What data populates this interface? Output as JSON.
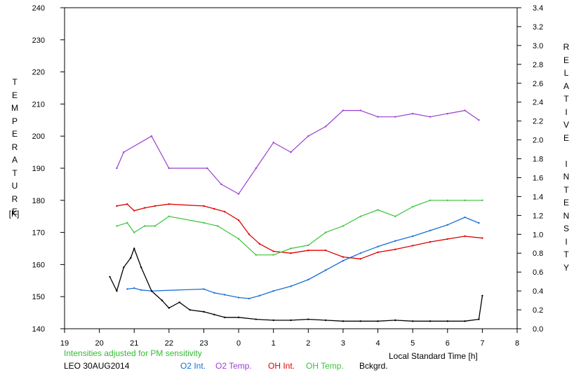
{
  "chart_data": {
    "type": "line",
    "title": "",
    "xlabel": "Local Standard Time [h]",
    "ylabel_left": "TEMPERATURE",
    "ylabel_left_unit": "[K]",
    "ylabel_right": "RELATIVE INTENSITY",
    "note": "Intensities adjusted for PM sensitivity",
    "station_date": "LEO 30AUG2014",
    "x_tick_labels": [
      "19",
      "20",
      "21",
      "22",
      "23",
      "0",
      "1",
      "2",
      "3",
      "4",
      "5",
      "6",
      "7",
      "8"
    ],
    "x_range": [
      19,
      32
    ],
    "y_left_ticks": [
      140,
      150,
      160,
      170,
      180,
      190,
      200,
      210,
      220,
      230,
      240
    ],
    "y_left_range": [
      140,
      240
    ],
    "y_right_ticks": [
      "0.0",
      "0.2",
      "0.4",
      "0.6",
      "0.8",
      "1.0",
      "1.2",
      "1.4",
      "1.6",
      "1.8",
      "2.0",
      "2.2",
      "2.4",
      "2.6",
      "2.8",
      "3.0",
      "3.2",
      "3.4"
    ],
    "y_right_range": [
      0,
      3.4
    ],
    "grid": false,
    "legend_position": "bottom",
    "series": [
      {
        "name": "O2 Int.",
        "axis": "right",
        "color": "#1a6fd6",
        "style": "line",
        "x": [
          20.8,
          21.0,
          21.2,
          21.5,
          23.0,
          23.3,
          23.6,
          24.0,
          24.3,
          24.6,
          25.0,
          25.5,
          26.0,
          26.5,
          27.0,
          27.5,
          28.0,
          28.5,
          29.0,
          29.5,
          30.0,
          30.5,
          30.9
        ],
        "y": [
          0.42,
          0.43,
          0.41,
          0.4,
          0.42,
          0.38,
          0.36,
          0.33,
          0.32,
          0.35,
          0.4,
          0.45,
          0.52,
          0.62,
          0.72,
          0.8,
          0.87,
          0.93,
          0.98,
          1.04,
          1.1,
          1.18,
          1.12
        ]
      },
      {
        "name": "O2 Temp.",
        "axis": "left",
        "color": "#9a3fd0",
        "style": "noisy",
        "x": [
          20.5,
          20.7,
          21.5,
          22.0,
          23.1,
          23.5,
          24.0,
          24.5,
          25.0,
          25.5,
          26.0,
          26.5,
          27.0,
          27.5,
          28.0,
          28.5,
          29.0,
          29.5,
          30.0,
          30.5,
          30.9
        ],
        "y": [
          190,
          195,
          200,
          190,
          190,
          185,
          182,
          190,
          198,
          195,
          200,
          203,
          208,
          208,
          206,
          206,
          207,
          206,
          207,
          208,
          205
        ]
      },
      {
        "name": "OH Int.",
        "axis": "right",
        "color": "#e00000",
        "style": "line",
        "x": [
          20.5,
          20.8,
          21.0,
          21.3,
          21.6,
          22.0,
          23.0,
          23.3,
          23.6,
          24.0,
          24.3,
          24.6,
          25.0,
          25.5,
          26.0,
          26.5,
          27.0,
          27.5,
          28.0,
          28.5,
          29.0,
          29.5,
          30.0,
          30.5,
          31.0
        ],
        "y": [
          1.3,
          1.32,
          1.25,
          1.28,
          1.3,
          1.32,
          1.3,
          1.27,
          1.24,
          1.15,
          1.0,
          0.9,
          0.82,
          0.8,
          0.83,
          0.83,
          0.76,
          0.74,
          0.81,
          0.84,
          0.88,
          0.92,
          0.95,
          0.98,
          0.96
        ]
      },
      {
        "name": "OH Temp.",
        "axis": "left",
        "color": "#3ac43a",
        "style": "noisy",
        "x": [
          20.5,
          20.8,
          21.0,
          21.3,
          21.6,
          22.0,
          23.0,
          23.4,
          24.0,
          24.5,
          25.0,
          25.5,
          26.0,
          26.5,
          27.0,
          27.5,
          28.0,
          28.5,
          29.0,
          29.5,
          30.0,
          30.5,
          31.0
        ],
        "y": [
          172,
          173,
          170,
          172,
          172,
          175,
          173,
          172,
          168,
          163,
          163,
          165,
          166,
          170,
          172,
          175,
          177,
          175,
          178,
          180,
          180,
          180,
          180
        ]
      },
      {
        "name": "Bckgrd.",
        "axis": "right",
        "color": "#000000",
        "style": "line",
        "x": [
          20.3,
          20.5,
          20.7,
          20.9,
          21.0,
          21.2,
          21.5,
          21.8,
          22.0,
          22.3,
          22.6,
          23.0,
          23.3,
          23.6,
          24.0,
          24.5,
          25.0,
          25.5,
          26.0,
          26.5,
          27.0,
          27.5,
          28.0,
          28.5,
          29.0,
          29.5,
          30.0,
          30.5,
          30.9,
          31.0
        ],
        "y": [
          0.55,
          0.4,
          0.65,
          0.75,
          0.85,
          0.65,
          0.4,
          0.3,
          0.22,
          0.28,
          0.2,
          0.18,
          0.15,
          0.12,
          0.12,
          0.1,
          0.09,
          0.09,
          0.1,
          0.09,
          0.08,
          0.08,
          0.08,
          0.09,
          0.08,
          0.08,
          0.08,
          0.08,
          0.1,
          0.35
        ]
      }
    ]
  }
}
